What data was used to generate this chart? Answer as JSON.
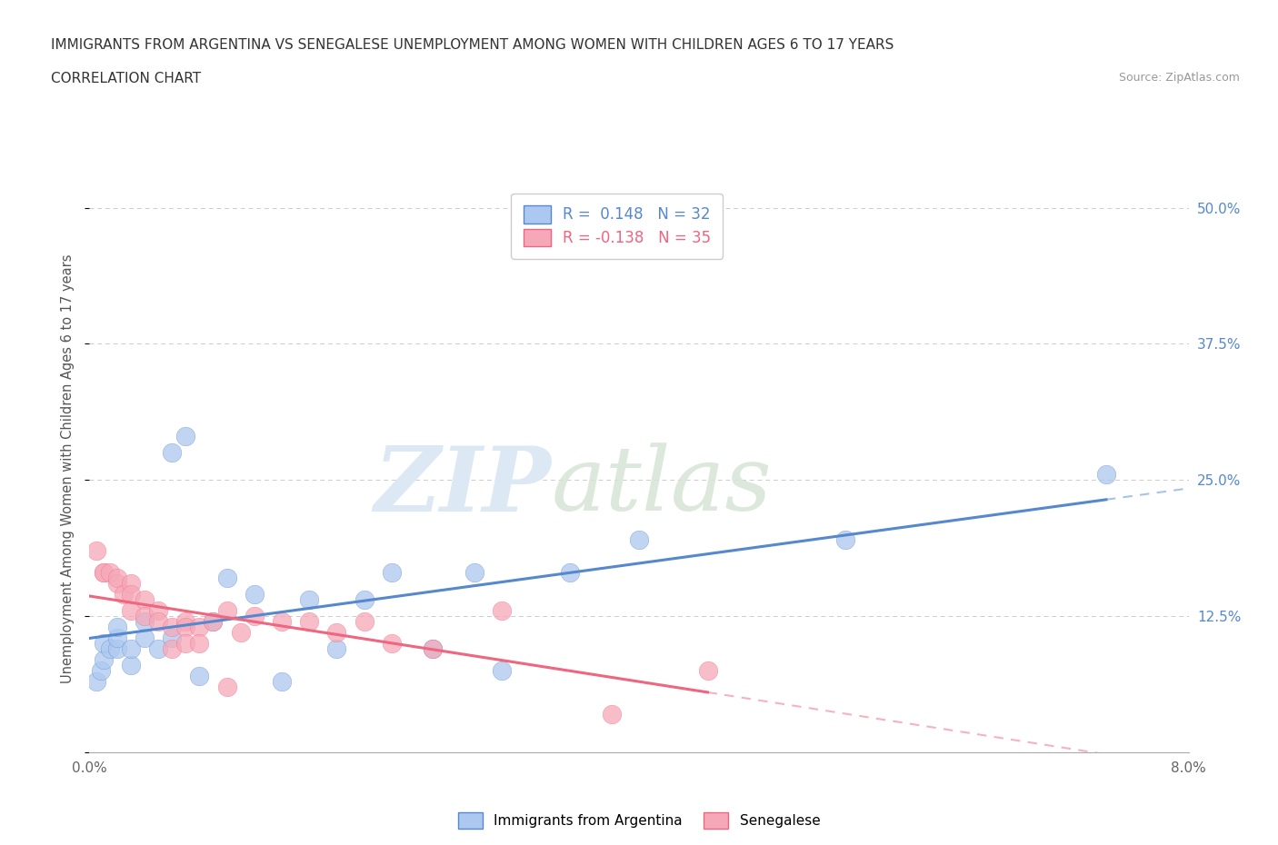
{
  "title": "IMMIGRANTS FROM ARGENTINA VS SENEGALESE UNEMPLOYMENT AMONG WOMEN WITH CHILDREN AGES 6 TO 17 YEARS",
  "subtitle": "CORRELATION CHART",
  "source": "Source: ZipAtlas.com",
  "ylabel": "Unemployment Among Women with Children Ages 6 to 17 years",
  "xlim": [
    0.0,
    0.08
  ],
  "ylim": [
    0.0,
    0.52
  ],
  "R_argentina": 0.148,
  "N_argentina": 32,
  "R_senegalese": -0.138,
  "N_senegalese": 35,
  "argentina_color": "#adc8f0",
  "senegalese_color": "#f5a8b8",
  "argentina_line_color": "#5588cc",
  "senegalese_line_color": "#ee6680",
  "watermark_zip": "ZIP",
  "watermark_atlas": "atlas",
  "argentina_x": [
    0.0005,
    0.0008,
    0.001,
    0.001,
    0.0015,
    0.002,
    0.002,
    0.002,
    0.003,
    0.003,
    0.004,
    0.004,
    0.005,
    0.006,
    0.006,
    0.007,
    0.008,
    0.009,
    0.01,
    0.012,
    0.014,
    0.016,
    0.018,
    0.02,
    0.022,
    0.025,
    0.028,
    0.03,
    0.035,
    0.04,
    0.055,
    0.074
  ],
  "argentina_y": [
    0.065,
    0.075,
    0.085,
    0.1,
    0.095,
    0.095,
    0.105,
    0.115,
    0.08,
    0.095,
    0.105,
    0.12,
    0.095,
    0.105,
    0.275,
    0.29,
    0.07,
    0.12,
    0.16,
    0.145,
    0.065,
    0.14,
    0.095,
    0.14,
    0.165,
    0.095,
    0.165,
    0.075,
    0.165,
    0.195,
    0.195,
    0.255
  ],
  "senegalese_x": [
    0.0005,
    0.001,
    0.001,
    0.0015,
    0.002,
    0.002,
    0.0025,
    0.003,
    0.003,
    0.003,
    0.004,
    0.004,
    0.005,
    0.005,
    0.006,
    0.006,
    0.007,
    0.007,
    0.007,
    0.008,
    0.008,
    0.009,
    0.01,
    0.01,
    0.011,
    0.012,
    0.014,
    0.016,
    0.018,
    0.02,
    0.022,
    0.025,
    0.03,
    0.038,
    0.045
  ],
  "senegalese_y": [
    0.185,
    0.165,
    0.165,
    0.165,
    0.155,
    0.16,
    0.145,
    0.155,
    0.145,
    0.13,
    0.14,
    0.125,
    0.13,
    0.12,
    0.115,
    0.095,
    0.12,
    0.115,
    0.1,
    0.115,
    0.1,
    0.12,
    0.06,
    0.13,
    0.11,
    0.125,
    0.12,
    0.12,
    0.11,
    0.12,
    0.1,
    0.095,
    0.13,
    0.035,
    0.075
  ],
  "background_color": "#ffffff",
  "grid_color": "#cccccc"
}
